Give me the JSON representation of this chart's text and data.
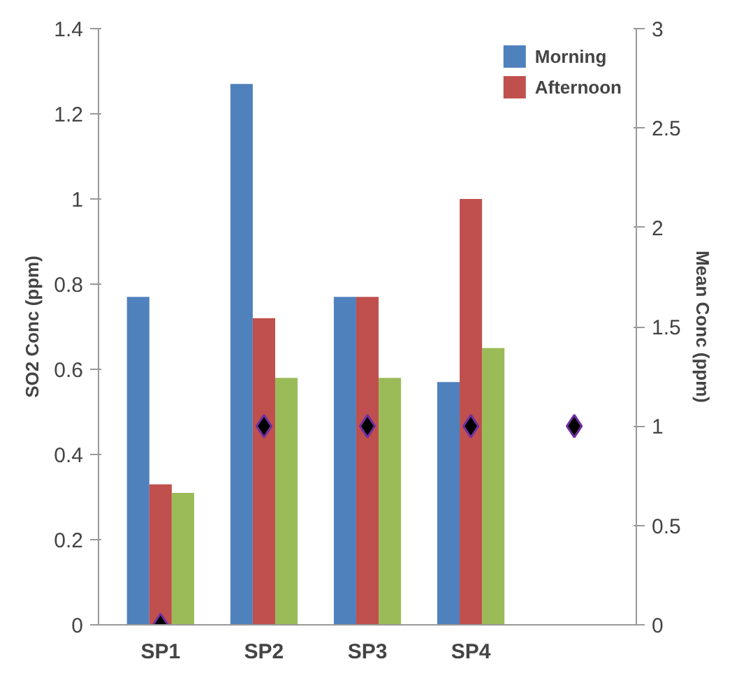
{
  "chart_data": {
    "type": "bar",
    "ylabel": "SO2 Conc (ppm)",
    "y2label": "Mean Conc (ppm)",
    "categories": [
      "SP1",
      "SP2",
      "SP3",
      "SP4",
      null
    ],
    "series": [
      {
        "name": "Morning",
        "color": "#4f81bd",
        "values": [
          0.77,
          1.27,
          0.77,
          0.57,
          null
        ]
      },
      {
        "name": "Afternoon",
        "color": "#c0504d",
        "values": [
          0.33,
          0.72,
          0.77,
          1.0,
          null
        ]
      },
      {
        "color": "#9bbb59",
        "values": [
          0.31,
          0.58,
          0.58,
          0.65,
          null
        ]
      },
      {
        "type": "scatter",
        "axis": "y2",
        "marker": "diamond",
        "color": "#000000",
        "values": [
          0,
          1,
          1,
          1,
          1
        ]
      }
    ],
    "ylim": [
      0,
      1.4
    ],
    "yticks": [
      0,
      0.2,
      0.4,
      0.6,
      0.8,
      1,
      1.2,
      1.4
    ],
    "y2lim": [
      0,
      3
    ],
    "y2ticks": [
      0,
      0.5,
      1,
      1.5,
      2,
      2.5,
      3
    ],
    "grid": false,
    "legend": "top right"
  }
}
